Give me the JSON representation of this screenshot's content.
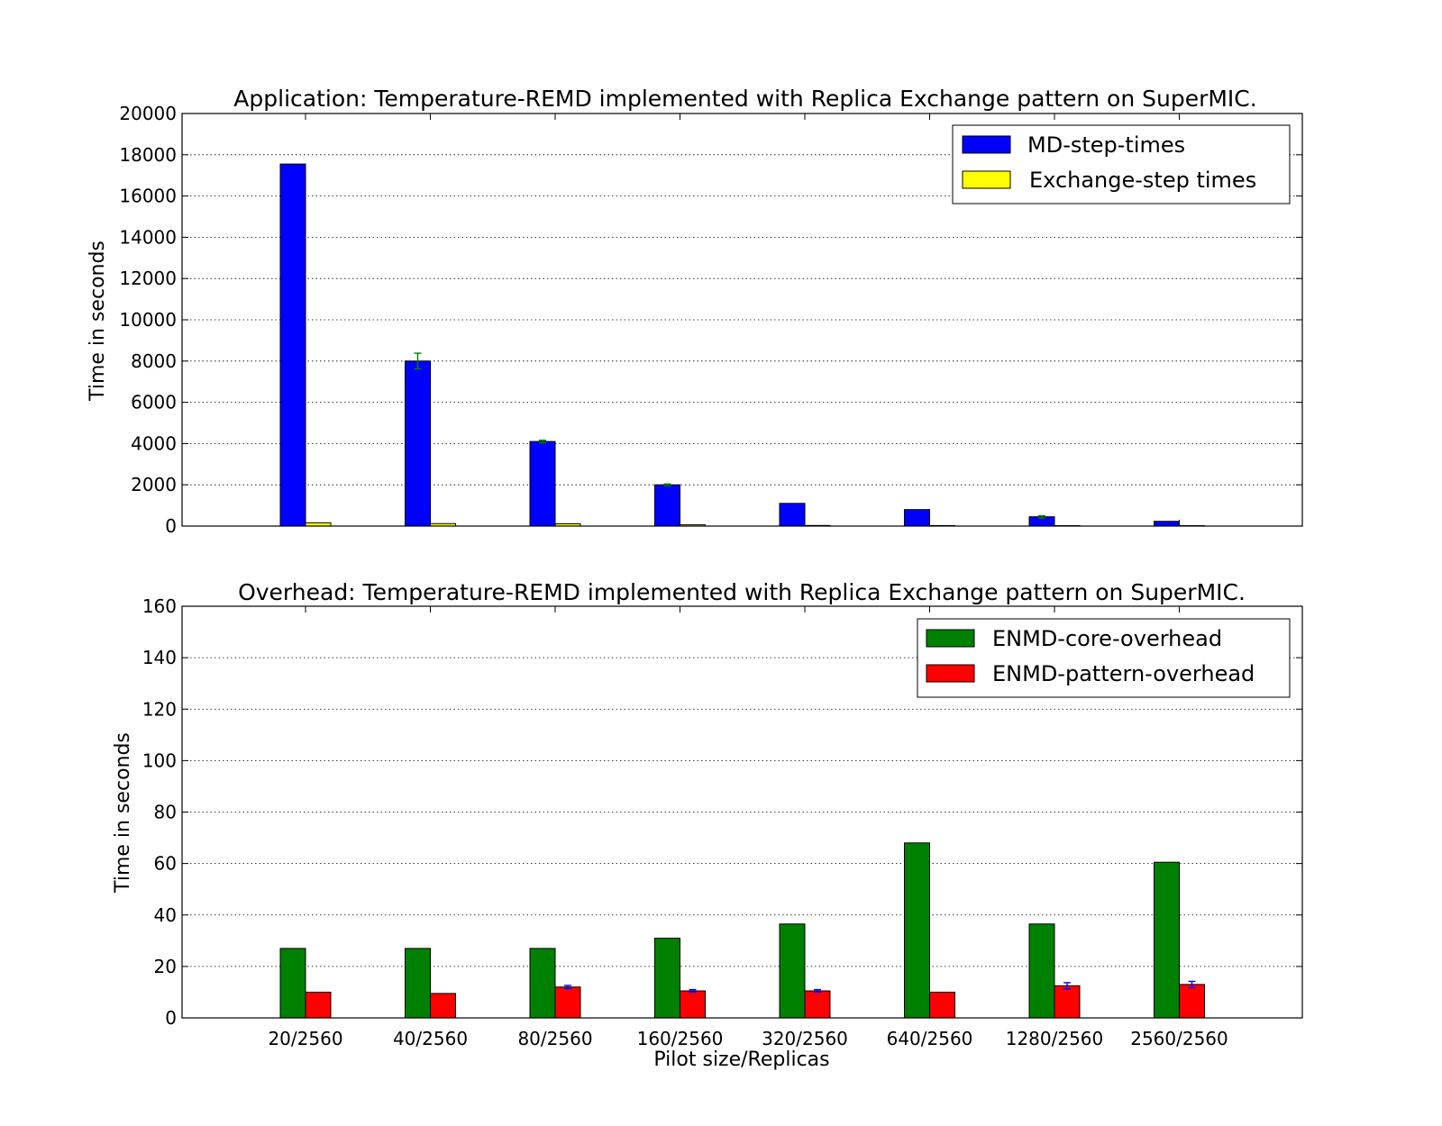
{
  "chart_data": [
    {
      "type": "bar",
      "title": "Application: Temperature-REMD implemented with Replica Exchange pattern on SuperMIC.",
      "xlabel": "",
      "ylabel": "Time in seconds",
      "ylim": [
        0,
        20000
      ],
      "yticks": [
        0,
        2000,
        4000,
        6000,
        8000,
        10000,
        12000,
        14000,
        16000,
        18000,
        20000
      ],
      "categories": [
        "20/2560",
        "40/2560",
        "80/2560",
        "160/2560",
        "320/2560",
        "640/2560",
        "1280/2560",
        "2560/2560"
      ],
      "show_xtick_labels": false,
      "grid": "horizontal dotted",
      "legend": "top-right",
      "series": [
        {
          "name": "MD-step-times",
          "color": "#0000ff",
          "errcolor": "#008000",
          "values": [
            17550,
            8000,
            4100,
            2000,
            1100,
            800,
            450,
            230
          ],
          "errors": [
            0,
            380,
            60,
            40,
            0,
            0,
            50,
            0
          ]
        },
        {
          "name": "Exchange-step times",
          "color": "#ffff00",
          "errcolor": "#008000",
          "values": [
            160,
            120,
            110,
            60,
            30,
            25,
            20,
            20
          ],
          "errors": [
            0,
            0,
            0,
            0,
            0,
            0,
            0,
            0
          ]
        }
      ]
    },
    {
      "type": "bar",
      "title": "Overhead: Temperature-REMD implemented with Replica Exchange pattern on SuperMIC.",
      "xlabel": "Pilot size/Replicas",
      "ylabel": "Time in seconds",
      "ylim": [
        0,
        160
      ],
      "yticks": [
        0,
        20,
        40,
        60,
        80,
        100,
        120,
        140,
        160
      ],
      "categories": [
        "20/2560",
        "40/2560",
        "80/2560",
        "160/2560",
        "320/2560",
        "640/2560",
        "1280/2560",
        "2560/2560"
      ],
      "show_xtick_labels": true,
      "grid": "horizontal dotted",
      "legend": "top-right",
      "series": [
        {
          "name": "ENMD-core-overhead",
          "color": "#008000",
          "errcolor": "#0000ff",
          "values": [
            27,
            27,
            27,
            31,
            36.5,
            68,
            36.5,
            60.5
          ],
          "errors": [
            0,
            0,
            0,
            0,
            0,
            0,
            0,
            0
          ]
        },
        {
          "name": "ENMD-pattern-overhead",
          "color": "#ff0000",
          "errcolor": "#0000ff",
          "values": [
            10,
            9.5,
            12,
            10.5,
            10.5,
            10,
            12.5,
            13
          ],
          "errors": [
            0,
            0,
            0.6,
            0.5,
            0.5,
            0,
            1.2,
            1.2
          ]
        }
      ]
    }
  ]
}
